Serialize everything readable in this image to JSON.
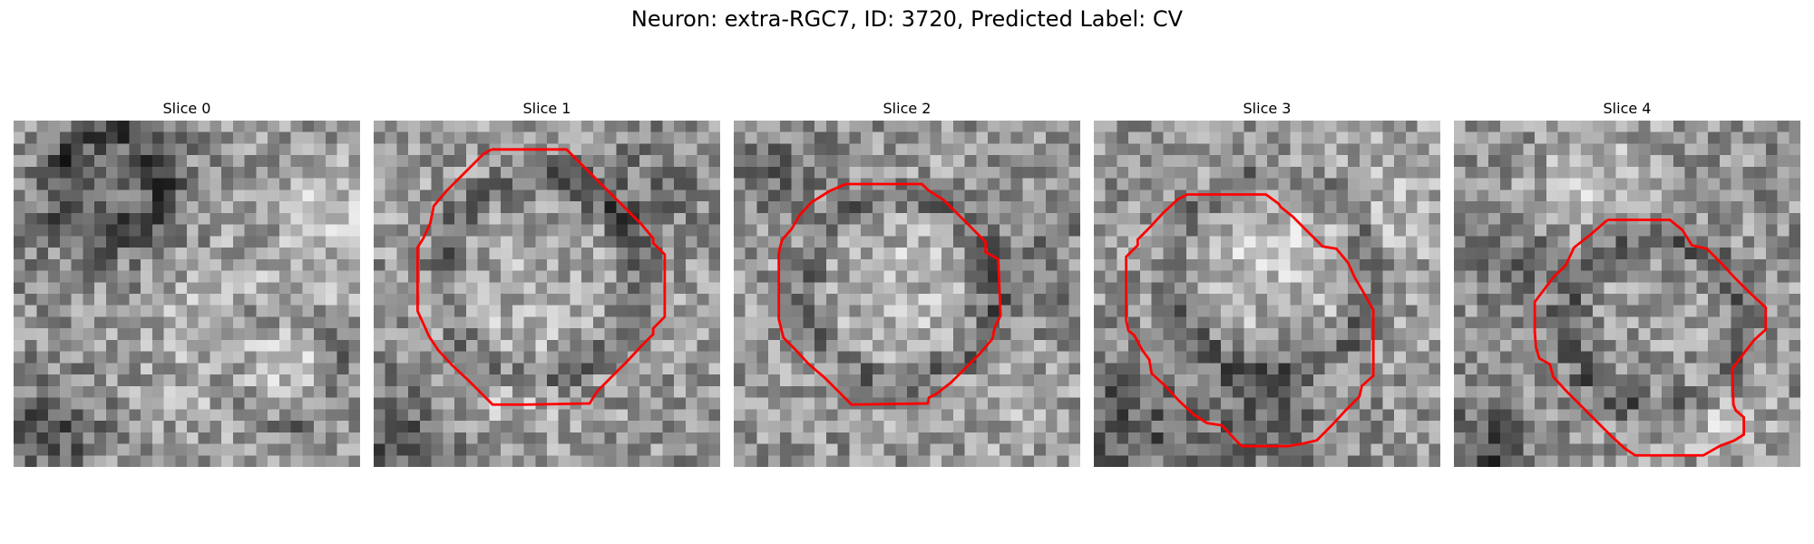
{
  "figure": {
    "title": "Neuron: extra-RGC7, ID: 3720, Predicted Label: CV"
  },
  "panels": [
    {
      "label": "Slice 0",
      "has_contour": false,
      "contour_color": "#ff0000"
    },
    {
      "label": "Slice 1",
      "has_contour": true,
      "contour_color": "#ff0000"
    },
    {
      "label": "Slice 2",
      "has_contour": true,
      "contour_color": "#ff0000"
    },
    {
      "label": "Slice 3",
      "has_contour": true,
      "contour_color": "#ff0000"
    },
    {
      "label": "Slice 4",
      "has_contour": true,
      "contour_color": "#ff0000"
    }
  ],
  "colormap": "gray"
}
